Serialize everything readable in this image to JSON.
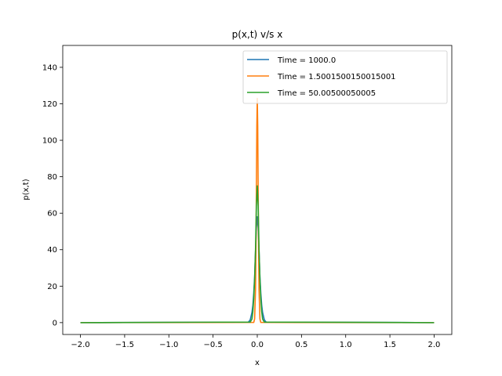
{
  "chart_data": {
    "type": "line",
    "title": "p(x,t) v/s x",
    "xlabel": "x",
    "ylabel": "p(x,t)",
    "xlim": [
      -2.2,
      2.2
    ],
    "ylim": [
      -6.5,
      152
    ],
    "x_ticks": [
      -2.0,
      -1.5,
      -1.0,
      -0.5,
      0.0,
      0.5,
      1.0,
      1.5,
      2.0
    ],
    "x_tick_labels": [
      "−2.0",
      "−1.5",
      "−1.0",
      "−0.5",
      "0.0",
      "0.5",
      "1.0",
      "1.5",
      "2.0"
    ],
    "y_ticks": [
      0,
      20,
      40,
      60,
      80,
      100,
      120,
      140
    ],
    "y_tick_labels": [
      "0",
      "20",
      "40",
      "60",
      "80",
      "100",
      "120",
      "140"
    ],
    "grid": false,
    "legend_position": "top-right",
    "series": [
      {
        "name": "Time = 1000.0",
        "color": "#1f77b4",
        "x": [
          -2.0,
          -0.1,
          -0.08,
          -0.06,
          -0.05,
          -0.04,
          -0.03,
          -0.02,
          -0.01,
          0.0,
          0.01,
          0.02,
          0.03,
          0.04,
          0.05,
          0.06,
          0.08,
          0.1,
          2.0
        ],
        "y": [
          0,
          0.3,
          1.5,
          5.6,
          9.5,
          16,
          25,
          39,
          52,
          58,
          52,
          39,
          25,
          16,
          9.5,
          5.6,
          1.5,
          0.3,
          0
        ]
      },
      {
        "name": "Time = 1.5001500150015001",
        "color": "#ff7f0e",
        "x": [
          -2.0,
          -0.04,
          -0.03,
          -0.02,
          -0.015,
          -0.01,
          -0.005,
          0.0,
          0.005,
          0.01,
          0.015,
          0.02,
          0.03,
          0.04,
          2.0
        ],
        "y": [
          0,
          0.1,
          2,
          18,
          40,
          74,
          108,
          123,
          108,
          74,
          40,
          18,
          2,
          0.1,
          0
        ]
      },
      {
        "name": "Time = 50.00500050005",
        "color": "#2ca02c",
        "x": [
          -2.0,
          -0.08,
          -0.06,
          -0.05,
          -0.04,
          -0.03,
          -0.02,
          -0.01,
          0.0,
          0.01,
          0.02,
          0.03,
          0.04,
          0.05,
          0.06,
          0.08,
          2.0
        ],
        "y": [
          0,
          0.3,
          2,
          6,
          13,
          24,
          40,
          64,
          75,
          64,
          40,
          24,
          13,
          6,
          2,
          0.3,
          0
        ]
      }
    ]
  }
}
